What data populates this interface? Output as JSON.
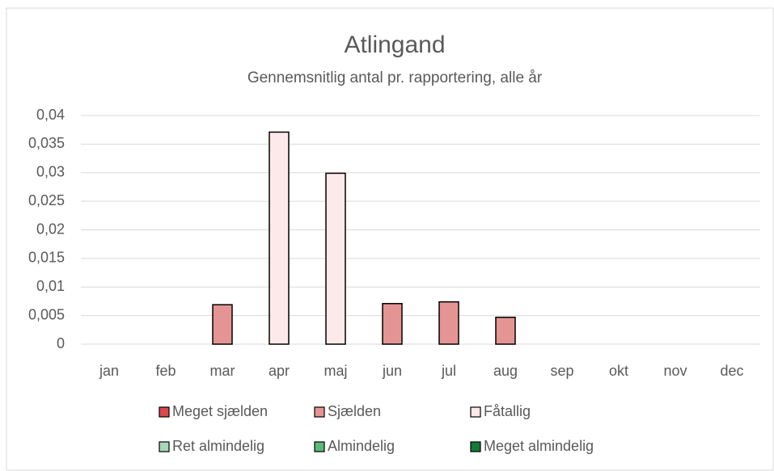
{
  "chart_data": {
    "type": "bar",
    "title": "Atlingand",
    "subtitle": "Gennemsnitlig antal pr. rapportering, alle år",
    "categories": [
      "jan",
      "feb",
      "mar",
      "apr",
      "maj",
      "jun",
      "jul",
      "aug",
      "sep",
      "okt",
      "nov",
      "dec"
    ],
    "series": [
      {
        "name": "Meget sjælden",
        "color": "#d9484b",
        "values": [
          null,
          null,
          null,
          null,
          null,
          null,
          null,
          null,
          null,
          null,
          null,
          null
        ]
      },
      {
        "name": "Sjælden",
        "color": "#e59494",
        "values": [
          null,
          null,
          0.0069,
          null,
          null,
          0.0071,
          0.0074,
          0.0047,
          null,
          null,
          null,
          null
        ]
      },
      {
        "name": "Fåtallig",
        "color": "#fde9e9",
        "values": [
          null,
          null,
          null,
          0.0371,
          0.0299,
          null,
          null,
          null,
          null,
          null,
          null,
          null
        ]
      },
      {
        "name": "Ret almindelig",
        "color": "#a9d8b8",
        "values": [
          null,
          null,
          null,
          null,
          null,
          null,
          null,
          null,
          null,
          null,
          null,
          null
        ]
      },
      {
        "name": "Almindelig",
        "color": "#5db87b",
        "values": [
          null,
          null,
          null,
          null,
          null,
          null,
          null,
          null,
          null,
          null,
          null,
          null
        ]
      },
      {
        "name": "Meget almindelig",
        "color": "#137a36",
        "values": [
          null,
          null,
          null,
          null,
          null,
          null,
          null,
          null,
          null,
          null,
          null,
          null
        ]
      }
    ],
    "ylim": [
      0,
      0.04
    ],
    "yticks": [
      0,
      {
        "value": 0.005,
        "label": "0,005"
      },
      {
        "value": 0.01,
        "label": "0,01"
      },
      {
        "value": 0.015,
        "label": "0,015"
      },
      {
        "value": 0.02,
        "label": "0,02"
      },
      {
        "value": 0.025,
        "label": "0,025"
      },
      {
        "value": 0.03,
        "label": "0,03"
      },
      {
        "value": 0.035,
        "label": "0,035"
      },
      {
        "value": 0.04,
        "label": "0,04"
      }
    ],
    "grid": true
  }
}
